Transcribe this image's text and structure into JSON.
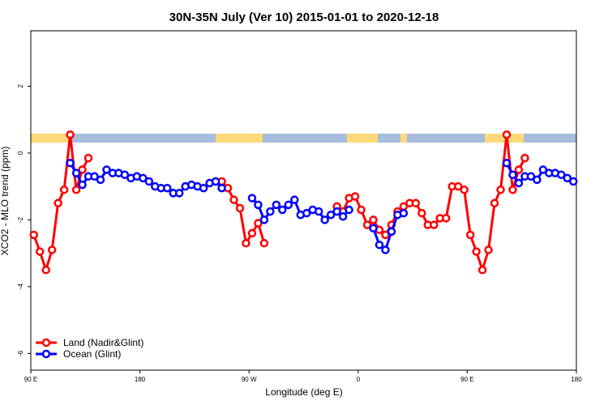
{
  "chart_data": {
    "type": "line",
    "title": "30N-35N July (Ver 10)   2015-01-01 to 2020-12-18",
    "x_label": "Longitude (deg E)",
    "y_label": "XCO2 - MLO trend (ppm)",
    "xlim": [
      90,
      540
    ],
    "ylim": [
      -6.5,
      3.66
    ],
    "xticks": [
      {
        "value": 90,
        "label": "90 E"
      },
      {
        "value": 180,
        "label": "180"
      },
      {
        "value": 270,
        "label": "90 W"
      },
      {
        "value": 360,
        "label": "0"
      },
      {
        "value": 450,
        "label": "90 E"
      },
      {
        "value": 540,
        "label": "180"
      }
    ],
    "yticks": [
      -6,
      -4,
      -2,
      0,
      2
    ],
    "legend": "bottomleft",
    "x": [
      92.5,
      97.5,
      102.5,
      107.5,
      112.5,
      117.5,
      122.5,
      127.5,
      132.5,
      137.5,
      142.5,
      147.5,
      152.5,
      157.5,
      162.5,
      167.5,
      172.5,
      177.5,
      182.5,
      187.5,
      192.5,
      197.5,
      202.5,
      207.5,
      212.5,
      217.5,
      222.5,
      227.5,
      232.5,
      237.5,
      242.5,
      247.5,
      252.5,
      257.5,
      262.5,
      267.5,
      272.5,
      277.5,
      282.5,
      287.5,
      292.5,
      297.5,
      302.5,
      307.5,
      312.5,
      317.5,
      322.5,
      327.5,
      332.5,
      337.5,
      342.5,
      347.5,
      352.5,
      357.5,
      362.5,
      367.5,
      372.5,
      377.5,
      382.5,
      387.5,
      392.5,
      397.5,
      402.5,
      407.5,
      412.5,
      417.5,
      422.5,
      427.5,
      432.5,
      437.5,
      442.5,
      447.5,
      452.5,
      457.5,
      462.5,
      467.5,
      472.5,
      477.5,
      482.5,
      487.5,
      492.5,
      497.5,
      502.5,
      507.5,
      512.5,
      517.5,
      522.5,
      527.5,
      532.5,
      537.5
    ],
    "series": [
      {
        "name": "Land (Nadir&Glint)",
        "color": "#ff0000",
        "values": [
          -2.45,
          -2.95,
          -3.5,
          -2.9,
          -1.5,
          -1.1,
          0.55,
          -1.1,
          -0.5,
          -0.15,
          null,
          null,
          null,
          null,
          null,
          null,
          null,
          null,
          null,
          null,
          null,
          null,
          null,
          null,
          null,
          null,
          null,
          null,
          null,
          null,
          null,
          -0.85,
          -1.05,
          -1.4,
          -1.65,
          -2.7,
          -2.4,
          -2.1,
          -2.7,
          null,
          null,
          null,
          null,
          null,
          null,
          null,
          null,
          null,
          null,
          null,
          -1.6,
          -1.75,
          -1.35,
          -1.3,
          -1.7,
          -2.15,
          -2.0,
          -2.3,
          -2.45,
          -2.15,
          -1.75,
          -1.6,
          -1.5,
          -1.5,
          -1.8,
          -2.15,
          -2.15,
          -1.95,
          -1.95,
          -1.0,
          -1.0,
          -1.1,
          -2.45,
          -2.95,
          -3.5,
          -2.9,
          -1.5,
          -1.1,
          0.55,
          -1.1,
          -0.5,
          -0.15,
          null,
          null,
          null,
          null,
          null,
          null,
          null,
          null
        ]
      },
      {
        "name": "Ocean (Glint)",
        "color": "#0000ff",
        "values": [
          null,
          null,
          null,
          null,
          null,
          null,
          -0.3,
          -0.6,
          -0.95,
          -0.7,
          -0.7,
          -0.8,
          -0.5,
          -0.6,
          -0.6,
          -0.65,
          -0.75,
          -0.7,
          -0.75,
          -0.85,
          -1.0,
          -1.05,
          -1.05,
          -1.2,
          -1.2,
          -1.0,
          -0.95,
          -1.0,
          -1.05,
          -0.9,
          -0.85,
          -1.05,
          null,
          null,
          null,
          null,
          -1.35,
          -1.55,
          -2.0,
          -1.75,
          -1.55,
          -1.7,
          -1.55,
          -1.4,
          -1.85,
          -1.8,
          -1.7,
          -1.75,
          -2.0,
          -1.85,
          -1.75,
          -1.9,
          -1.7,
          null,
          null,
          null,
          -2.25,
          -2.75,
          -2.9,
          -2.35,
          -1.85,
          -1.8,
          null,
          null,
          null,
          null,
          null,
          null,
          null,
          null,
          null,
          null,
          null,
          null,
          null,
          null,
          null,
          null,
          -0.3,
          -0.65,
          -0.9,
          -0.7,
          -0.7,
          -0.8,
          -0.5,
          -0.6,
          -0.6,
          -0.65,
          -0.75,
          -0.85
        ]
      }
    ]
  }
}
